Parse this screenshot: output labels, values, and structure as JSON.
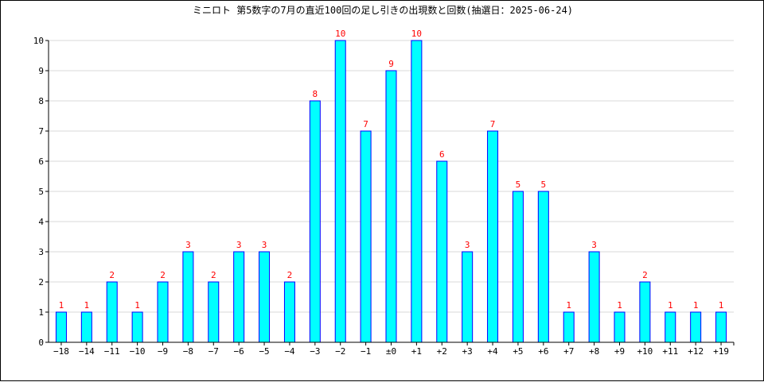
{
  "chart_data": {
    "type": "bar",
    "title": "ミニロト 第5数字の7月の直近100回の足し引きの出現数と回数(抽選日：2025-06-24)",
    "categories": [
      "−18",
      "−14",
      "−11",
      "−10",
      "−9",
      "−8",
      "−7",
      "−6",
      "−5",
      "−4",
      "−3",
      "−2",
      "−1",
      "±0",
      "+1",
      "+2",
      "+3",
      "+4",
      "+5",
      "+6",
      "+7",
      "+8",
      "+9",
      "+10",
      "+11",
      "+12",
      "+19"
    ],
    "values": [
      1,
      1,
      2,
      1,
      2,
      3,
      2,
      3,
      3,
      2,
      8,
      10,
      7,
      9,
      10,
      6,
      3,
      7,
      5,
      5,
      1,
      3,
      1,
      2,
      1,
      1,
      1
    ],
    "xlabel": "",
    "ylabel": "",
    "ylim": [
      0,
      10
    ],
    "yticks": [
      0,
      1,
      2,
      3,
      4,
      5,
      6,
      7,
      8,
      9,
      10
    ],
    "grid": true,
    "colors": {
      "bar_fill": "#00ffff",
      "bar_stroke": "#0000ff",
      "label": "#ff0000",
      "grid": "#d8d8d8"
    }
  }
}
